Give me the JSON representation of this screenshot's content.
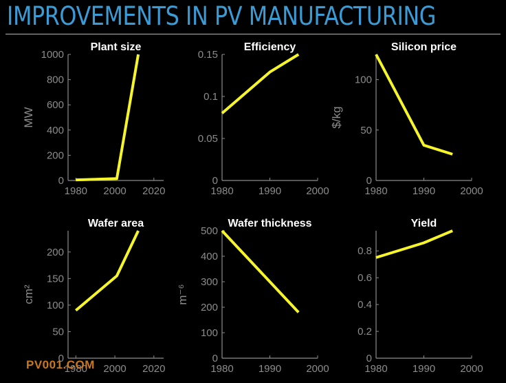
{
  "slide": {
    "title": "IMPROVEMENTS IN PV MANUFACTURING",
    "title_color": "#3a9bd5",
    "watermark": "PV001.COM"
  },
  "colors": {
    "background": "#000000",
    "line": "#f5f52a",
    "axis": "#8c8c8c",
    "tick_text": "#8c8c8c",
    "chart_title": "#ffffff"
  },
  "chart_data": [
    {
      "type": "line",
      "title": "Plant size",
      "xlabel": "",
      "ylabel": "MW",
      "xlim": [
        1976,
        2025
      ],
      "ylim": [
        0,
        1000
      ],
      "xticks": [
        1980,
        2000,
        2020
      ],
      "yticks": [
        0,
        200,
        400,
        600,
        800,
        1000
      ],
      "x": [
        1980,
        2001,
        2012
      ],
      "y": [
        5,
        15,
        1000
      ]
    },
    {
      "type": "line",
      "title": "Efficiency",
      "xlabel": "",
      "ylabel": "",
      "xlim": [
        1980,
        2000
      ],
      "ylim": [
        0,
        0.15
      ],
      "xticks": [
        1980,
        1990,
        2000
      ],
      "yticks": [
        0,
        0.05,
        0.1,
        0.15
      ],
      "ytick_labels": [
        "0",
        "0.05",
        "0.1",
        "0.15"
      ],
      "x": [
        1980,
        1990,
        1996
      ],
      "y": [
        0.08,
        0.129,
        0.15
      ]
    },
    {
      "type": "line",
      "title": "Silicon price",
      "xlabel": "",
      "ylabel": "$/kg",
      "xlim": [
        1980,
        2000
      ],
      "ylim": [
        0,
        125
      ],
      "xticks": [
        1980,
        1990,
        2000
      ],
      "yticks": [
        0,
        50,
        100
      ],
      "x": [
        1980,
        1990,
        1996
      ],
      "y": [
        125,
        35,
        26
      ]
    },
    {
      "type": "line",
      "title": "Wafer area",
      "xlabel": "",
      "ylabel": "cm²",
      "xlim": [
        1976,
        2025
      ],
      "ylim": [
        0,
        240
      ],
      "xticks": [
        1980,
        2000,
        2020
      ],
      "yticks": [
        0,
        50,
        100,
        150,
        200
      ],
      "x": [
        1980,
        2001,
        2012
      ],
      "y": [
        90,
        155,
        240
      ]
    },
    {
      "type": "line",
      "title": "Wafer thickness",
      "xlabel": "",
      "ylabel": "m⁻⁶",
      "xlim": [
        1980,
        2000
      ],
      "ylim": [
        0,
        500
      ],
      "xticks": [
        1980,
        1990,
        2000
      ],
      "yticks": [
        0,
        100,
        200,
        300,
        400,
        500
      ],
      "x": [
        1980,
        1990,
        1996
      ],
      "y": [
        500,
        300,
        180
      ]
    },
    {
      "type": "line",
      "title": "Yield",
      "xlabel": "",
      "ylabel": "",
      "xlim": [
        1980,
        2000
      ],
      "ylim": [
        0,
        0.95
      ],
      "xticks": [
        1980,
        1990,
        2000
      ],
      "yticks": [
        0,
        0.2,
        0.4,
        0.6,
        0.8
      ],
      "ytick_labels": [
        "0",
        "0.2",
        "0.4",
        "0.6",
        "0.8"
      ],
      "x": [
        1980,
        1990,
        1996
      ],
      "y": [
        0.75,
        0.86,
        0.95
      ]
    }
  ]
}
